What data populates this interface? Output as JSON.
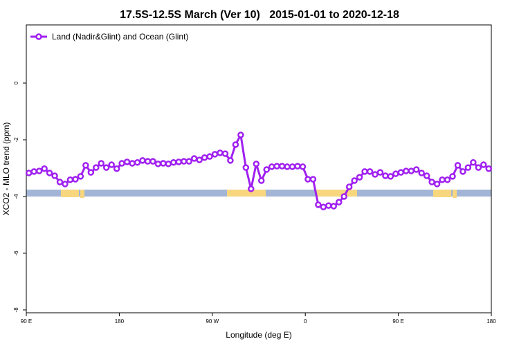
{
  "chart_data": {
    "type": "line",
    "title": "17.5S-12.5S March (Ver 10)   2015-01-01 to 2020-12-18",
    "xlabel": "Longitude (deg E)",
    "ylabel": "XCO2 - MLO trend (ppm)",
    "xlim": [
      90,
      540
    ],
    "ylim": [
      -8.1,
      2.05
    ],
    "xticks": [
      {
        "value": 90,
        "label": "90 E"
      },
      180,
      {
        "value": 270,
        "label": "90 W"
      },
      {
        "value": 360,
        "label": "0"
      },
      {
        "value": 450,
        "label": "90 E"
      },
      {
        "value": 540,
        "label": "180"
      }
    ],
    "yticks": [
      -8,
      -6,
      -4,
      -2,
      0
    ],
    "legend": "upper left",
    "x": [
      92.5,
      97.5,
      102.5,
      107.5,
      112.5,
      117.5,
      122.5,
      127.5,
      132.5,
      137.5,
      142.5,
      147.5,
      152.5,
      157.5,
      162.5,
      167.5,
      172.5,
      177.5,
      182.5,
      187.5,
      192.5,
      197.5,
      202.5,
      207.5,
      212.5,
      217.5,
      222.5,
      227.5,
      232.5,
      237.5,
      242.5,
      247.5,
      252.5,
      257.5,
      262.5,
      267.5,
      272.5,
      277.5,
      282.5,
      287.5,
      292.5,
      297.5,
      302.5,
      307.5,
      312.5,
      317.5,
      322.5,
      327.5,
      332.5,
      337.5,
      342.5,
      347.5,
      352.5,
      357.5,
      362.5,
      367.5,
      372.5,
      377.5,
      382.5,
      387.5,
      392.5,
      397.5,
      402.5,
      407.5,
      412.5,
      417.5,
      422.5,
      427.5,
      432.5,
      437.5,
      442.5,
      447.5,
      452.5,
      457.5,
      462.5,
      467.5,
      472.5,
      477.5,
      482.5,
      487.5,
      492.5,
      497.5,
      502.5,
      507.5,
      512.5,
      517.5,
      522.5,
      527.5,
      532.5,
      537.5
    ],
    "series": [
      {
        "name": "Land (Nadir&Glint) and Ocean (Glint)",
        "color": "#a020f0",
        "values": [
          -3.17,
          -3.12,
          -3.1,
          -3.02,
          -3.17,
          -3.27,
          -3.49,
          -3.56,
          -3.41,
          -3.39,
          -3.29,
          -2.9,
          -3.15,
          -2.98,
          -2.83,
          -2.98,
          -2.88,
          -3.02,
          -2.83,
          -2.78,
          -2.83,
          -2.8,
          -2.73,
          -2.76,
          -2.76,
          -2.85,
          -2.83,
          -2.85,
          -2.8,
          -2.78,
          -2.76,
          -2.76,
          -2.66,
          -2.71,
          -2.63,
          -2.59,
          -2.51,
          -2.46,
          -2.49,
          -2.73,
          -2.17,
          -1.83,
          -2.98,
          -3.73,
          -2.85,
          -3.44,
          -3.05,
          -2.95,
          -2.93,
          -2.93,
          -2.95,
          -2.95,
          -2.93,
          -2.95,
          -3.39,
          -3.39,
          -4.29,
          -4.37,
          -4.32,
          -4.34,
          -4.2,
          -4.0,
          -3.66,
          -3.44,
          -3.32,
          -3.12,
          -3.12,
          -3.22,
          -3.15,
          -3.27,
          -3.29,
          -3.2,
          -3.15,
          -3.1,
          -3.1,
          -3.05,
          -3.17,
          -3.27,
          -3.49,
          -3.56,
          -3.41,
          -3.41,
          -3.29,
          -2.9,
          -3.12,
          -2.98,
          -2.8,
          -2.98,
          -2.88,
          -3.02
        ]
      }
    ]
  }
}
